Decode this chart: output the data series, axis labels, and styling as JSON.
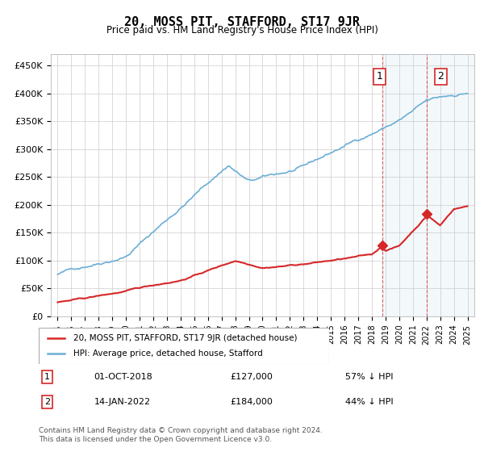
{
  "title": "20, MOSS PIT, STAFFORD, ST17 9JR",
  "subtitle": "Price paid vs. HM Land Registry's House Price Index (HPI)",
  "xlabel": "",
  "ylabel": "",
  "ylim": [
    0,
    470000
  ],
  "yticks": [
    0,
    50000,
    100000,
    150000,
    200000,
    250000,
    300000,
    350000,
    400000,
    450000
  ],
  "ytick_labels": [
    "£0",
    "£50K",
    "£100K",
    "£150K",
    "£200K",
    "£250K",
    "£300K",
    "£350K",
    "£400K",
    "£450K"
  ],
  "hpi_color": "#6baed6",
  "price_color": "#d62728",
  "vline_color": "#d62728",
  "marker1_color": "#d62728",
  "marker2_color": "#d62728",
  "sale1_year": 2018.75,
  "sale1_price": 127000,
  "sale2_year": 2022.04,
  "sale2_price": 184000,
  "legend_entries": [
    "20, MOSS PIT, STAFFORD, ST17 9JR (detached house)",
    "HPI: Average price, detached house, Stafford"
  ],
  "annotation1_label": "1",
  "annotation1_date": "01-OCT-2018",
  "annotation1_price": "£127,000",
  "annotation1_pct": "57% ↓ HPI",
  "annotation2_label": "2",
  "annotation2_date": "14-JAN-2022",
  "annotation2_price": "£184,000",
  "annotation2_pct": "44% ↓ HPI",
  "footer": "Contains HM Land Registry data © Crown copyright and database right 2024.\nThis data is licensed under the Open Government Licence v3.0.",
  "xstart": 1995,
  "xend": 2025
}
